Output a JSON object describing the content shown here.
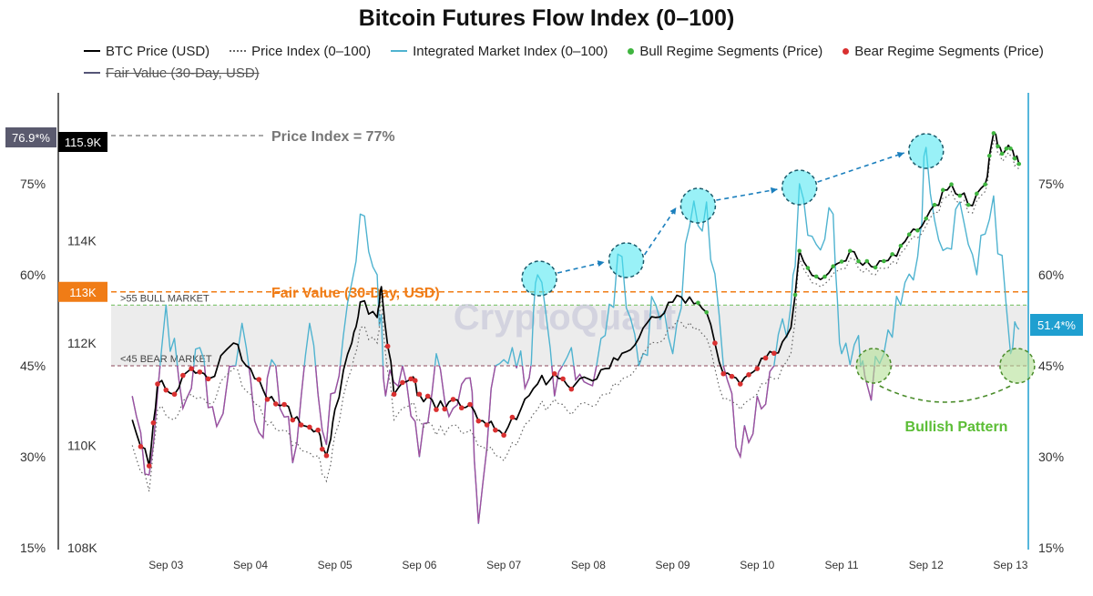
{
  "chart_data": {
    "type": "line",
    "title": "Bitcoin Futures Flow Index (0–100)",
    "x_ticks": [
      "Sep 03",
      "Sep 04",
      "Sep 05",
      "Sep 06",
      "Sep 07",
      "Sep 08",
      "Sep 09",
      "Sep 10",
      "Sep 11",
      "Sep 12",
      "Sep 13"
    ],
    "left_axis_pct_ticks": [
      "75%",
      "60%",
      "45%",
      "30%",
      "15%"
    ],
    "left_axis_price_ticks": [
      "114K",
      "112K",
      "110K",
      "108K"
    ],
    "right_axis_ticks": [
      "75%",
      "60%",
      "45%",
      "30%",
      "15%"
    ],
    "price_ylim": [
      108000,
      116500
    ],
    "index_ylim": [
      15,
      83
    ],
    "grid": false,
    "legend_position": "top",
    "legend": [
      {
        "name": "BTC Price (USD)",
        "style": "line",
        "color": "#000000"
      },
      {
        "name": "Price Index (0–100)",
        "style": "dotted",
        "color": "#555555"
      },
      {
        "name": "Integrated Market Index (0–100)",
        "style": "line",
        "color": "#4fb3d0"
      },
      {
        "name": "Bull Regime Segments (Price)",
        "style": "dot",
        "color": "#3fb53f"
      },
      {
        "name": "Bear Regime Segments (Price)",
        "style": "dot",
        "color": "#d93030"
      },
      {
        "name": "Fair Value (30-Day, USD)",
        "style": "line",
        "color": "#555577",
        "struck": true
      }
    ],
    "badges": {
      "price_index_pct": "76.9*%",
      "current_price": "115.9K",
      "fair_value": "113K",
      "integrated_index_pct": "51.4*%"
    },
    "annotations": {
      "price_index": "Price Index = 77%",
      "fair_value": "Fair Value (30-Day, USD)",
      "bull_market": ">55 BULL MARKET",
      "bear_market": "<45 BEAR MARKET",
      "bullish_pattern": "Bullish Pattern",
      "watermark": "CryptoQuant"
    },
    "bull_threshold": 55,
    "bear_threshold": 45,
    "fair_value_price": 113000,
    "price_series_anchors": [
      [
        2.6,
        110500
      ],
      [
        2.8,
        109600
      ],
      [
        2.9,
        111200
      ],
      [
        3.1,
        111000
      ],
      [
        3.3,
        111500
      ],
      [
        3.5,
        111300
      ],
      [
        3.8,
        112000
      ],
      [
        4.0,
        111500
      ],
      [
        4.2,
        110900
      ],
      [
        4.4,
        110800
      ],
      [
        4.6,
        110400
      ],
      [
        4.8,
        110300
      ],
      [
        4.9,
        109800
      ],
      [
        5.0,
        110700
      ],
      [
        5.2,
        112000
      ],
      [
        5.3,
        112800
      ],
      [
        5.5,
        112500
      ],
      [
        5.55,
        113100
      ],
      [
        5.7,
        111000
      ],
      [
        5.9,
        111300
      ],
      [
        6.0,
        111000
      ],
      [
        6.2,
        110700
      ],
      [
        6.4,
        110900
      ],
      [
        6.6,
        110800
      ],
      [
        6.8,
        110400
      ],
      [
        7.0,
        110200
      ],
      [
        7.2,
        110700
      ],
      [
        7.4,
        111200
      ],
      [
        7.6,
        111400
      ],
      [
        7.8,
        111100
      ],
      [
        8.0,
        111300
      ],
      [
        8.2,
        111500
      ],
      [
        8.4,
        111800
      ],
      [
        8.6,
        112100
      ],
      [
        8.8,
        112500
      ],
      [
        9.0,
        112800
      ],
      [
        9.2,
        112900
      ],
      [
        9.4,
        112600
      ],
      [
        9.6,
        111400
      ],
      [
        9.8,
        111200
      ],
      [
        10.0,
        111500
      ],
      [
        10.2,
        111800
      ],
      [
        10.4,
        112300
      ],
      [
        10.5,
        113800
      ],
      [
        10.7,
        113300
      ],
      [
        10.9,
        113500
      ],
      [
        11.1,
        113800
      ],
      [
        11.3,
        113600
      ],
      [
        11.5,
        113600
      ],
      [
        11.7,
        113900
      ],
      [
        11.9,
        114200
      ],
      [
        12.1,
        114700
      ],
      [
        12.3,
        115100
      ],
      [
        12.5,
        114700
      ],
      [
        12.7,
        115100
      ],
      [
        12.8,
        116100
      ],
      [
        12.9,
        115700
      ],
      [
        13.0,
        115800
      ],
      [
        13.1,
        115500
      ]
    ],
    "integrated_index_anchors": [
      [
        2.6,
        40
      ],
      [
        2.8,
        27
      ],
      [
        3.0,
        55
      ],
      [
        3.2,
        38
      ],
      [
        3.4,
        48
      ],
      [
        3.6,
        35
      ],
      [
        3.9,
        52
      ],
      [
        4.1,
        34
      ],
      [
        4.3,
        45
      ],
      [
        4.5,
        29
      ],
      [
        4.7,
        52
      ],
      [
        4.9,
        32
      ],
      [
        5.1,
        50
      ],
      [
        5.3,
        70
      ],
      [
        5.5,
        60
      ],
      [
        5.6,
        40
      ],
      [
        5.8,
        45
      ],
      [
        6.0,
        30
      ],
      [
        6.2,
        47
      ],
      [
        6.4,
        38
      ],
      [
        6.6,
        43
      ],
      [
        6.7,
        19
      ],
      [
        6.9,
        45
      ],
      [
        7.1,
        48
      ],
      [
        7.3,
        43
      ],
      [
        7.4,
        60
      ],
      [
        7.6,
        40
      ],
      [
        7.8,
        48
      ],
      [
        8.0,
        42
      ],
      [
        8.2,
        50
      ],
      [
        8.4,
        63
      ],
      [
        8.6,
        45
      ],
      [
        8.8,
        55
      ],
      [
        9.0,
        47
      ],
      [
        9.2,
        68
      ],
      [
        9.4,
        72
      ],
      [
        9.6,
        45
      ],
      [
        9.8,
        30
      ],
      [
        10.0,
        40
      ],
      [
        10.2,
        45
      ],
      [
        10.4,
        55
      ],
      [
        10.5,
        75
      ],
      [
        10.7,
        65
      ],
      [
        10.9,
        70
      ],
      [
        11.0,
        47
      ],
      [
        11.2,
        50
      ],
      [
        11.3,
        42
      ],
      [
        11.5,
        47
      ],
      [
        11.7,
        55
      ],
      [
        11.9,
        63
      ],
      [
        12.0,
        81
      ],
      [
        12.2,
        64
      ],
      [
        12.4,
        72
      ],
      [
        12.6,
        60
      ],
      [
        12.8,
        73
      ],
      [
        13.0,
        47
      ],
      [
        13.1,
        51
      ]
    ]
  },
  "badge_colors": {
    "price_index_bg": "#5a5a6e",
    "price_bg": "#000000",
    "fair_value_bg": "#f07c16",
    "integrated_bg": "#1f9fd0"
  }
}
